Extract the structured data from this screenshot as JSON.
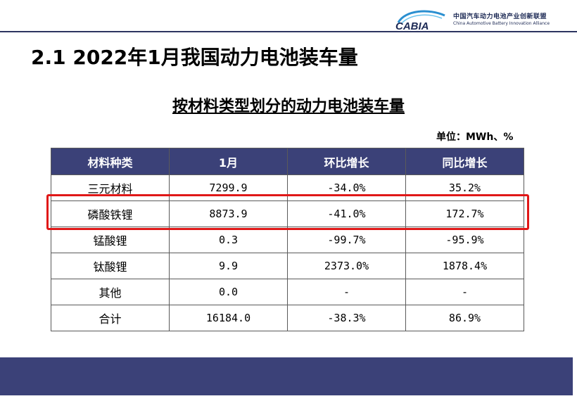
{
  "header": {
    "logo_mark": "CABIA",
    "logo_cn": "中国汽车动力电池产业创新联盟",
    "logo_en": "China Automotive Battery Innovation Alliance"
  },
  "section_title": "2.1 2022年1月我国动力电池装车量",
  "table": {
    "title": "按材料类型划分的动力电池装车量",
    "unit": "单位：MWh、%",
    "columns": [
      "材料种类",
      "1月",
      "环比增长",
      "同比增长"
    ],
    "rows": [
      [
        "三元材料",
        "7299.9",
        "-34.0%",
        "35.2%"
      ],
      [
        "磷酸铁锂",
        "8873.9",
        "-41.0%",
        "172.7%"
      ],
      [
        "锰酸锂",
        "0.3",
        "-99.7%",
        "-95.9%"
      ],
      [
        "钛酸锂",
        "9.9",
        "2373.0%",
        "1878.4%"
      ],
      [
        "其他",
        "0.0",
        "-",
        "-"
      ],
      [
        "合计",
        "16184.0",
        "-38.3%",
        "86.9%"
      ]
    ],
    "highlighted_row": "磷酸铁锂"
  },
  "colors": {
    "header_fill": "#3b4178",
    "highlight_border": "#e01818",
    "rule": "#2d3560"
  }
}
